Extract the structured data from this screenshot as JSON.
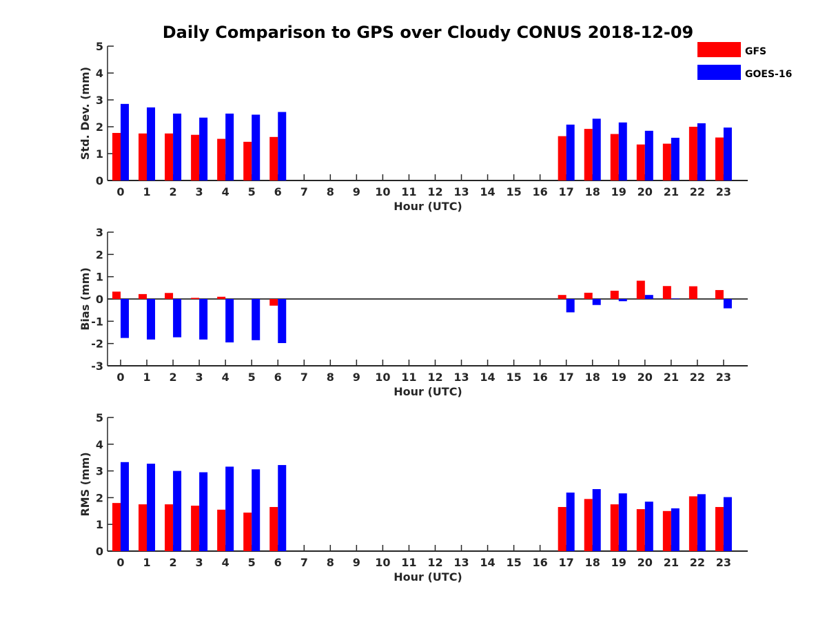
{
  "title": "Daily Comparison to GPS over Cloudy CONUS 2018-12-09",
  "legend": {
    "placement": "top-right",
    "items": [
      {
        "label": "GFS",
        "color": "#ff0000"
      },
      {
        "label": "GOES-16",
        "color": "#0000ff"
      }
    ]
  },
  "chart_data": [
    {
      "type": "bar",
      "title": "Daily Comparison to GPS over Cloudy CONUS 2018-12-09",
      "xlabel": "Hour (UTC)",
      "ylabel": "Std. Dev. (mm)",
      "categories": [
        "0",
        "1",
        "2",
        "3",
        "4",
        "5",
        "6",
        "7",
        "8",
        "9",
        "10",
        "11",
        "12",
        "13",
        "14",
        "15",
        "16",
        "17",
        "18",
        "19",
        "20",
        "21",
        "22",
        "23"
      ],
      "ylim": [
        0,
        5
      ],
      "yticks": [
        0,
        1,
        2,
        3,
        4,
        5
      ],
      "series": [
        {
          "name": "GFS",
          "color": "#ff0000",
          "values": [
            1.77,
            1.75,
            1.75,
            1.7,
            1.55,
            1.44,
            1.62,
            null,
            null,
            null,
            null,
            null,
            null,
            null,
            null,
            null,
            null,
            1.65,
            1.92,
            1.73,
            1.34,
            1.37,
            2.0,
            1.6
          ]
        },
        {
          "name": "GOES-16",
          "color": "#0000ff",
          "values": [
            2.85,
            2.72,
            2.49,
            2.34,
            2.49,
            2.45,
            2.55,
            null,
            null,
            null,
            null,
            null,
            null,
            null,
            null,
            null,
            null,
            2.08,
            2.3,
            2.16,
            1.85,
            1.59,
            2.13,
            1.97
          ]
        }
      ]
    },
    {
      "type": "bar",
      "xlabel": "Hour (UTC)",
      "ylabel": "Bias (mm)",
      "categories": [
        "0",
        "1",
        "2",
        "3",
        "4",
        "5",
        "6",
        "7",
        "8",
        "9",
        "10",
        "11",
        "12",
        "13",
        "14",
        "15",
        "16",
        "17",
        "18",
        "19",
        "20",
        "21",
        "22",
        "23"
      ],
      "ylim": [
        -3,
        3
      ],
      "yticks": [
        -3,
        -2,
        -1,
        0,
        1,
        2,
        3
      ],
      "zero_line": true,
      "series": [
        {
          "name": "GFS",
          "color": "#ff0000",
          "values": [
            0.33,
            0.22,
            0.27,
            0.05,
            0.1,
            0.0,
            -0.3,
            null,
            null,
            null,
            null,
            null,
            null,
            null,
            null,
            null,
            null,
            0.18,
            0.28,
            0.37,
            0.82,
            0.58,
            0.57,
            0.4
          ]
        },
        {
          "name": "GOES-16",
          "color": "#0000ff",
          "values": [
            -1.75,
            -1.82,
            -1.72,
            -1.82,
            -1.95,
            -1.85,
            -1.98,
            null,
            null,
            null,
            null,
            null,
            null,
            null,
            null,
            null,
            null,
            -0.6,
            -0.27,
            -0.1,
            0.18,
            0.02,
            0.0,
            -0.42
          ]
        }
      ]
    },
    {
      "type": "bar",
      "xlabel": "Hour (UTC)",
      "ylabel": "RMS (mm)",
      "categories": [
        "0",
        "1",
        "2",
        "3",
        "4",
        "5",
        "6",
        "7",
        "8",
        "9",
        "10",
        "11",
        "12",
        "13",
        "14",
        "15",
        "16",
        "17",
        "18",
        "19",
        "20",
        "21",
        "22",
        "23"
      ],
      "ylim": [
        0,
        5
      ],
      "yticks": [
        0,
        1,
        2,
        3,
        4,
        5
      ],
      "series": [
        {
          "name": "GFS",
          "color": "#ff0000",
          "values": [
            1.8,
            1.75,
            1.75,
            1.7,
            1.55,
            1.44,
            1.65,
            null,
            null,
            null,
            null,
            null,
            null,
            null,
            null,
            null,
            null,
            1.65,
            1.95,
            1.75,
            1.57,
            1.5,
            2.05,
            1.65
          ]
        },
        {
          "name": "GOES-16",
          "color": "#0000ff",
          "values": [
            3.33,
            3.27,
            3.0,
            2.95,
            3.16,
            3.06,
            3.22,
            null,
            null,
            null,
            null,
            null,
            null,
            null,
            null,
            null,
            null,
            2.19,
            2.32,
            2.16,
            1.85,
            1.6,
            2.13,
            2.02
          ]
        }
      ]
    }
  ]
}
